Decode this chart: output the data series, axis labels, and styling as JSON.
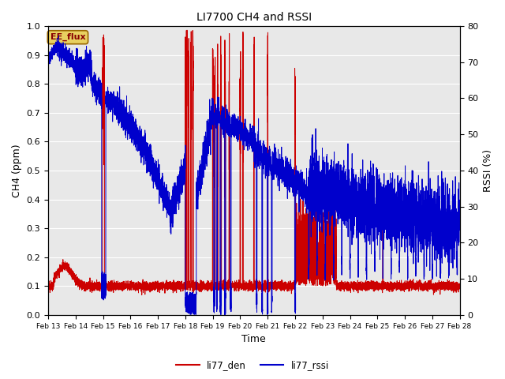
{
  "title": "LI7700 CH4 and RSSI",
  "xlabel": "Time",
  "ylabel_left": "CH4 (ppm)",
  "ylabel_right": "RSSI (%)",
  "ylim_left": [
    0.0,
    1.0
  ],
  "ylim_right": [
    0,
    80
  ],
  "yticks_left": [
    0.0,
    0.1,
    0.2,
    0.3,
    0.4,
    0.5,
    0.6,
    0.7,
    0.8,
    0.9,
    1.0
  ],
  "yticks_right": [
    0,
    10,
    20,
    30,
    40,
    50,
    60,
    70,
    80
  ],
  "xtick_labels": [
    "Feb 13",
    "Feb 14",
    "Feb 15",
    "Feb 16",
    "Feb 17",
    "Feb 18",
    "Feb 19",
    "Feb 20",
    "Feb 21",
    "Feb 22",
    "Feb 23",
    "Feb 24",
    "Feb 25",
    "Feb 26",
    "Feb 27",
    "Feb 28"
  ],
  "color_ch4": "#cc0000",
  "color_rssi": "#0000cc",
  "legend_labels": [
    "li77_den",
    "li77_rssi"
  ],
  "annotation_text": "EE_flux",
  "annotation_facecolor": "#e8d060",
  "annotation_edgecolor": "#996600",
  "annotation_textcolor": "#880000",
  "plot_bg_color": "#e8e8e8",
  "fig_bg_color": "#ffffff",
  "grid_color": "#ffffff"
}
